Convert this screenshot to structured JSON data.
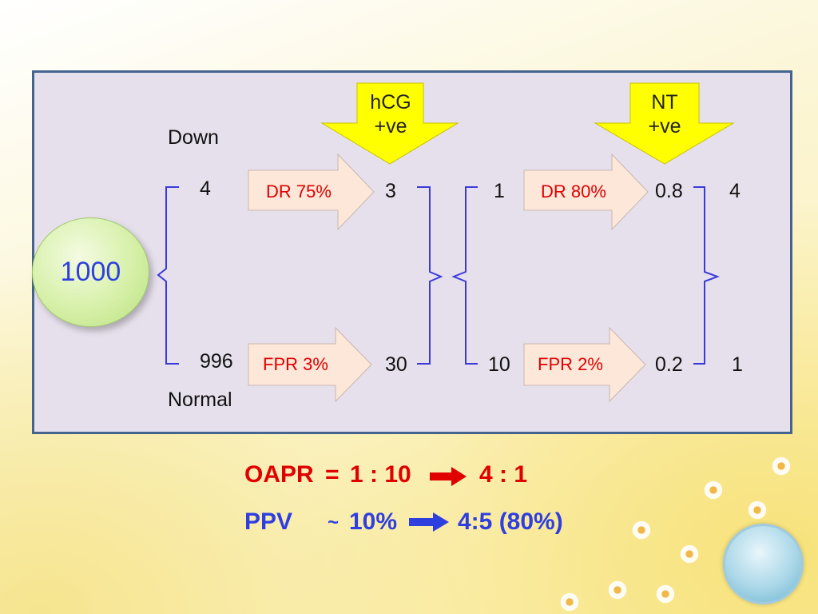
{
  "labels": {
    "down": "Down",
    "normal": "Normal",
    "total": "1000",
    "hcg_line1": "hCG",
    "hcg_line2": "+ve",
    "nt_line1": "NT",
    "nt_line2": "+ve",
    "down_count": "4",
    "normal_count": "996",
    "dr1": "DR 75%",
    "fpr1": "FPR 3%",
    "dr2": "DR 80%",
    "fpr2": "FPR 2%",
    "s1_down": "3",
    "s1_normal": "30",
    "s2_down_in": "1",
    "s2_normal_in": "10",
    "s2_down_out": "0.8",
    "s2_normal_out": "0.2",
    "final_down": "4",
    "final_normal": "1"
  },
  "summary": {
    "oapr_label": "OAPR",
    "oapr_eq": "=",
    "oapr_from": "1 : 10",
    "oapr_to": "4 : 1",
    "ppv_label": "PPV",
    "ppv_approx": "~",
    "ppv_from": "10%",
    "ppv_to": "4:5 (80%)"
  },
  "colors": {
    "panel_bg": "#e6e0ec",
    "panel_border": "#44638f",
    "bracket": "#3a3adb",
    "red_text": "#e00000",
    "blue_text": "#2f3fdf",
    "yellow_arrow": "#ffff00"
  }
}
